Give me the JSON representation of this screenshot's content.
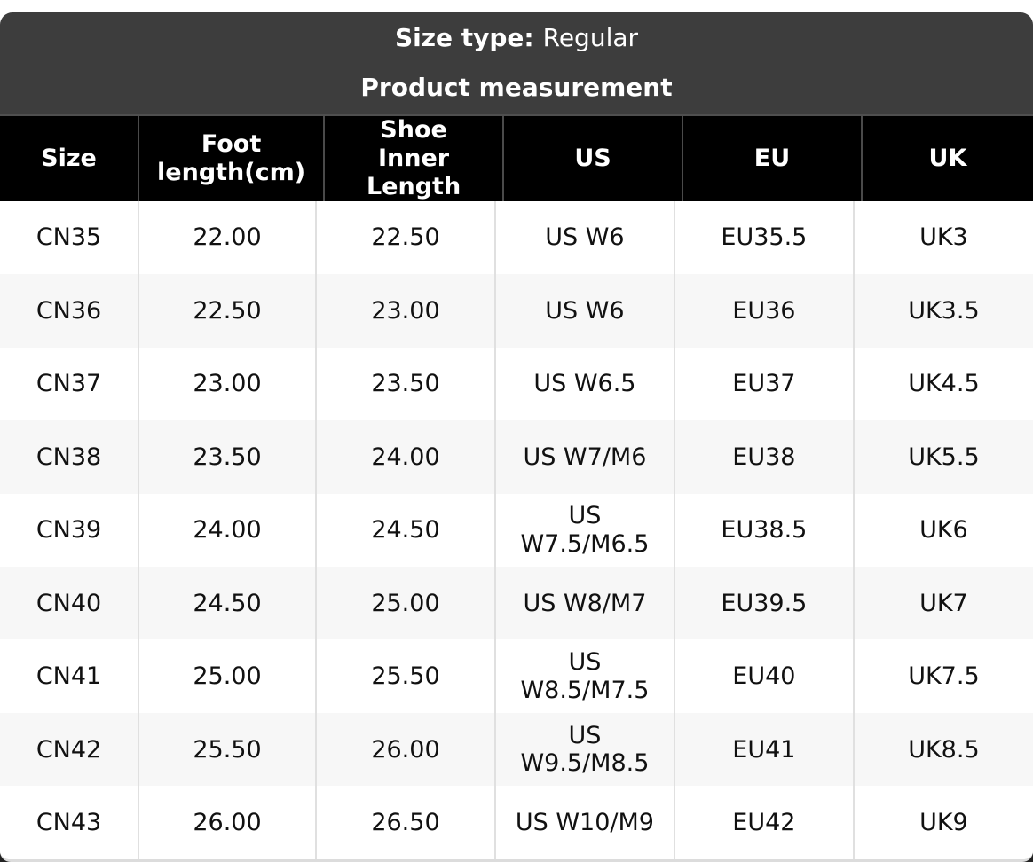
{
  "card": {
    "size_type_label": "Size type:",
    "size_type_value": "Regular",
    "title": "Product measurement"
  },
  "table": {
    "columns": [
      "Size",
      "Foot length(cm)",
      "Shoe Inner Length",
      "US",
      "EU",
      "UK"
    ],
    "rows": [
      [
        "CN35",
        "22.00",
        "22.50",
        "US W6",
        "EU35.5",
        "UK3"
      ],
      [
        "CN36",
        "22.50",
        "23.00",
        "US W6",
        "EU36",
        "UK3.5"
      ],
      [
        "CN37",
        "23.00",
        "23.50",
        "US W6.5",
        "EU37",
        "UK4.5"
      ],
      [
        "CN38",
        "23.50",
        "24.00",
        "US W7/M6",
        "EU38",
        "UK5.5"
      ],
      [
        "CN39",
        "24.00",
        "24.50",
        "US W7.5/M6.5",
        "EU38.5",
        "UK6"
      ],
      [
        "CN40",
        "24.50",
        "25.00",
        "US W8/M7",
        "EU39.5",
        "UK7"
      ],
      [
        "CN41",
        "25.00",
        "25.50",
        "US W8.5/M7.5",
        "EU40",
        "UK7.5"
      ],
      [
        "CN42",
        "25.50",
        "26.00",
        "US W9.5/M8.5",
        "EU41",
        "UK8.5"
      ],
      [
        "CN43",
        "26.00",
        "26.50",
        "US W10/M9",
        "EU42",
        "UK9"
      ]
    ]
  },
  "colors": {
    "card_header_bg": "#3d3d3d",
    "thead_bg": "#000000",
    "thead_divider": "#4a4a4a",
    "row_alt_bg": "#f7f7f7",
    "body_divider": "#e0e0e0",
    "bottom_bar": "#222222",
    "bottom_border": "#dcdcdc",
    "text": "#111111"
  }
}
